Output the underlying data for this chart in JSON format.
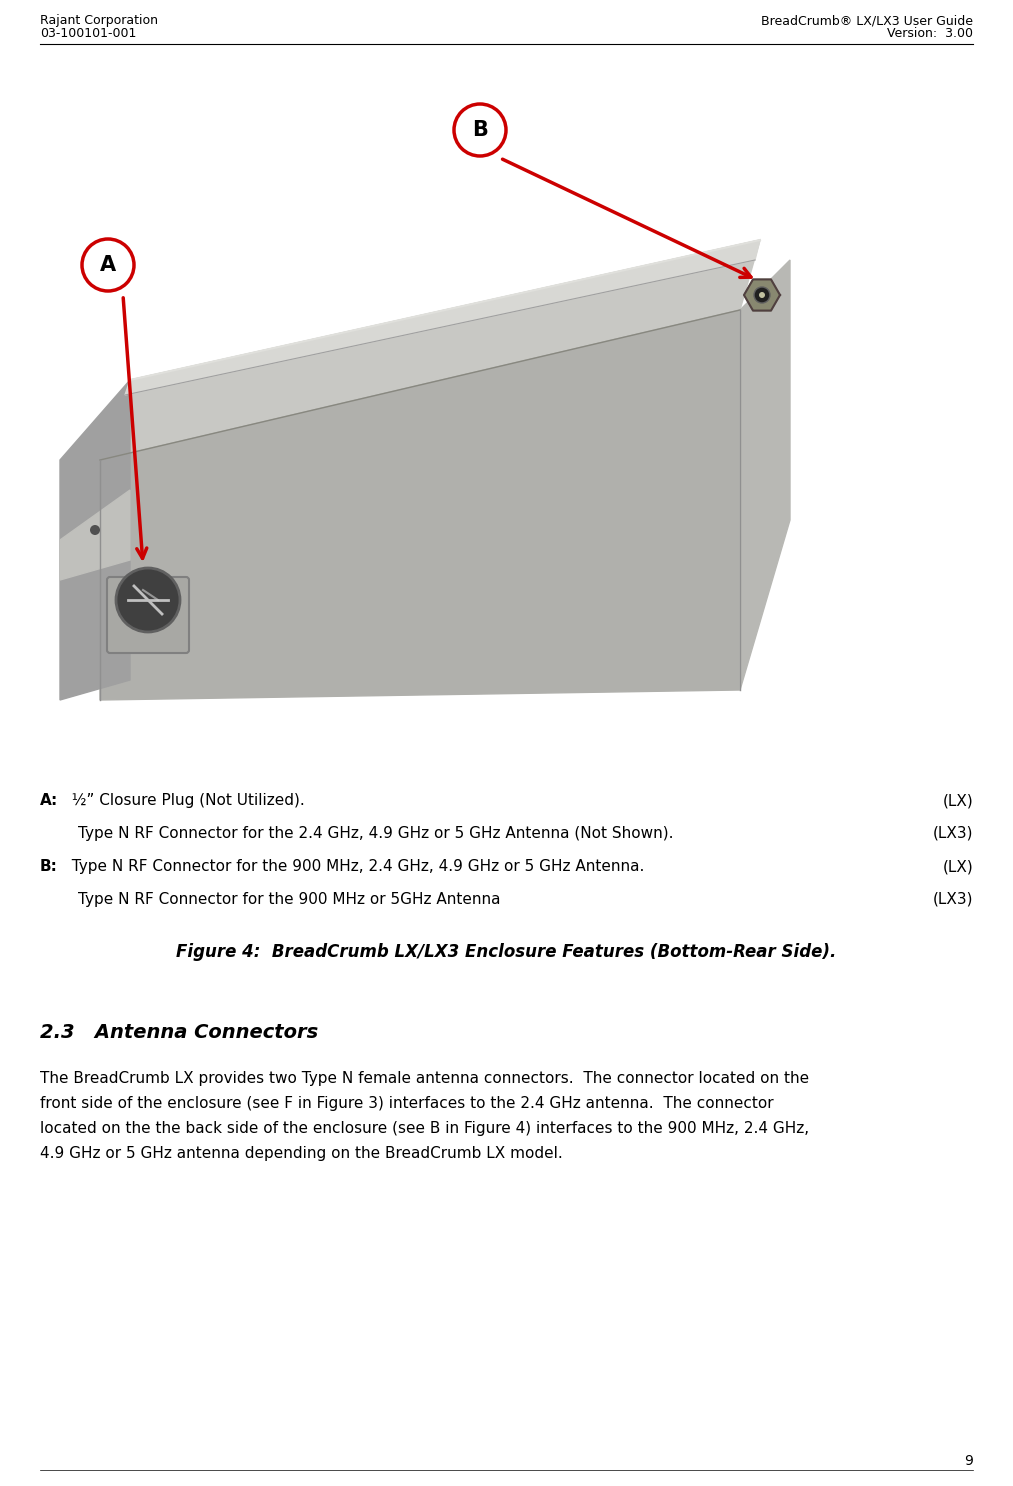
{
  "header_left_line1": "Rajant Corporation",
  "header_left_line2": "03-100101-001",
  "header_right_line1": "BreadCrumb® LX/LX3 User Guide",
  "header_right_line2": "Version:  3.00",
  "header_color": "#000000",
  "bg_color": "#ffffff",
  "arrow_color": "#cc0000",
  "caption_lines": [
    {
      "bold_prefix": "A:",
      "text": "  ½” Closure Plug (Not Utilized).",
      "suffix": "(LX)",
      "indent": false
    },
    {
      "bold_prefix": "",
      "text": "Type N RF Connector for the 2.4 GHz, 4.9 GHz or 5 GHz Antenna (Not Shown).",
      "suffix": "(LX3)",
      "indent": true
    },
    {
      "bold_prefix": "B:",
      "text": "  Type N RF Connector for the 900 MHz, 2.4 GHz, 4.9 GHz or 5 GHz Antenna.",
      "suffix": "(LX)",
      "indent": false
    },
    {
      "bold_prefix": "",
      "text": "Type N RF Connector for the 900 MHz or 5GHz Antenna",
      "suffix": "(LX3)",
      "indent": true
    }
  ],
  "figure_caption": "Figure 4:  BreadCrumb LX/LX3 Enclosure Features (Bottom-Rear Side).",
  "section_heading": "2.3   Antenna Connectors",
  "body_lines": [
    "The BreadCrumb LX provides two Type N female antenna connectors.  The connector located on the",
    "front side of the enclosure (see F in Figure 3) interfaces to the 2.4 GHz antenna.  The connector",
    "located on the the back side of the enclosure (see B in Figure 4) interfaces to the 900 MHz, 2.4 GHz,",
    "4.9 GHz or 5 GHz antenna depending on the BreadCrumb LX model."
  ],
  "page_number": "9",
  "font_size_header": 9,
  "font_size_caption": 11,
  "font_size_figure_caption": 12,
  "font_size_section": 14,
  "font_size_body": 11
}
